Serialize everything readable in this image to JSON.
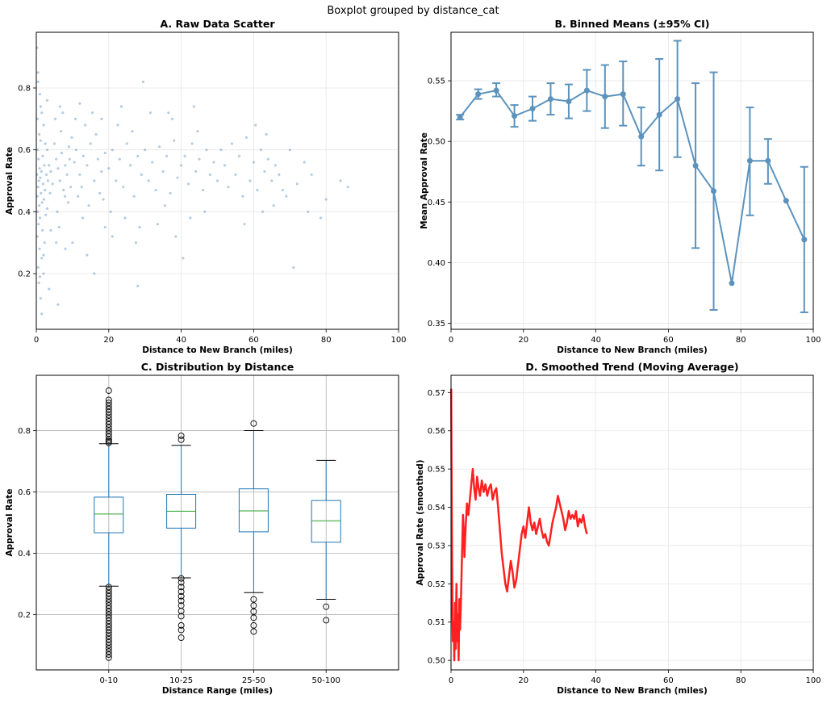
{
  "figure": {
    "suptitle": "Boxplot grouped by distance_cat"
  },
  "chart_data": [
    {
      "id": "A",
      "type": "scatter",
      "title": "A. Raw Data Scatter",
      "xlabel": "Distance to New Branch (miles)",
      "ylabel": "Approval Rate",
      "xlim": [
        0,
        100
      ],
      "ylim": [
        0.02,
        0.98
      ],
      "xticks": [
        0,
        20,
        40,
        60,
        80,
        100
      ],
      "yticks": [
        0.2,
        0.4,
        0.6,
        0.8
      ],
      "grid": true,
      "color": "#4682b4",
      "points": [
        [
          0.2,
          0.93
        ],
        [
          0.5,
          0.82
        ],
        [
          1.0,
          0.78
        ],
        [
          1.5,
          0.72
        ],
        [
          0.3,
          0.7
        ],
        [
          2.0,
          0.68
        ],
        [
          0.8,
          0.65
        ],
        [
          1.2,
          0.63
        ],
        [
          2.5,
          0.62
        ],
        [
          0.4,
          0.6
        ],
        [
          3.0,
          0.6
        ],
        [
          1.8,
          0.58
        ],
        [
          0.6,
          0.57
        ],
        [
          2.2,
          0.55
        ],
        [
          3.5,
          0.55
        ],
        [
          0.9,
          0.54
        ],
        [
          1.4,
          0.53
        ],
        [
          4.0,
          0.53
        ],
        [
          0.2,
          0.52
        ],
        [
          2.8,
          0.52
        ],
        [
          1.1,
          0.51
        ],
        [
          3.2,
          0.5
        ],
        [
          0.7,
          0.5
        ],
        [
          1.9,
          0.49
        ],
        [
          4.5,
          0.49
        ],
        [
          0.5,
          0.48
        ],
        [
          2.4,
          0.47
        ],
        [
          1.3,
          0.46
        ],
        [
          3.8,
          0.46
        ],
        [
          0.3,
          0.45
        ],
        [
          2.1,
          0.44
        ],
        [
          1.6,
          0.43
        ],
        [
          0.8,
          0.42
        ],
        [
          3.0,
          0.41
        ],
        [
          0.4,
          0.4
        ],
        [
          2.6,
          0.39
        ],
        [
          1.0,
          0.38
        ],
        [
          0.6,
          0.36
        ],
        [
          1.7,
          0.34
        ],
        [
          0.3,
          0.32
        ],
        [
          2.3,
          0.3
        ],
        [
          0.9,
          0.28
        ],
        [
          1.5,
          0.25
        ],
        [
          0.5,
          0.22
        ],
        [
          2.0,
          0.2
        ],
        [
          0.7,
          0.17
        ],
        [
          3.5,
          0.15
        ],
        [
          1.2,
          0.12
        ],
        [
          1.5,
          0.07
        ],
        [
          6.0,
          0.1
        ],
        [
          5.0,
          0.62
        ],
        [
          5.5,
          0.57
        ],
        [
          6.0,
          0.54
        ],
        [
          6.5,
          0.5
        ],
        [
          7.0,
          0.59
        ],
        [
          7.5,
          0.47
        ],
        [
          8.0,
          0.55
        ],
        [
          8.5,
          0.52
        ],
        [
          9.0,
          0.61
        ],
        [
          9.5,
          0.48
        ],
        [
          5.2,
          0.7
        ],
        [
          6.8,
          0.66
        ],
        [
          7.9,
          0.45
        ],
        [
          5.8,
          0.4
        ],
        [
          8.8,
          0.43
        ],
        [
          9.2,
          0.57
        ],
        [
          6.3,
          0.35
        ],
        [
          7.3,
          0.72
        ],
        [
          5.5,
          0.3
        ],
        [
          9.8,
          0.64
        ],
        [
          10.5,
          0.56
        ],
        [
          11.0,
          0.6
        ],
        [
          12.0,
          0.52
        ],
        [
          12.5,
          0.48
        ],
        [
          13.0,
          0.58
        ],
        [
          14.0,
          0.55
        ],
        [
          15.0,
          0.62
        ],
        [
          16.0,
          0.5
        ],
        [
          17.0,
          0.57
        ],
        [
          18.0,
          0.53
        ],
        [
          11.5,
          0.45
        ],
        [
          13.5,
          0.68
        ],
        [
          14.5,
          0.42
        ],
        [
          16.5,
          0.65
        ],
        [
          17.5,
          0.46
        ],
        [
          19.0,
          0.59
        ],
        [
          10.8,
          0.7
        ],
        [
          12.8,
          0.38
        ],
        [
          15.5,
          0.72
        ],
        [
          18.5,
          0.44
        ],
        [
          20.0,
          0.54
        ],
        [
          21.0,
          0.6
        ],
        [
          22.0,
          0.5
        ],
        [
          23.0,
          0.57
        ],
        [
          24.0,
          0.48
        ],
        [
          25.0,
          0.62
        ],
        [
          26.0,
          0.55
        ],
        [
          27.0,
          0.45
        ],
        [
          28.0,
          0.58
        ],
        [
          29.0,
          0.52
        ],
        [
          20.5,
          0.4
        ],
        [
          22.5,
          0.68
        ],
        [
          24.5,
          0.38
        ],
        [
          26.5,
          0.66
        ],
        [
          28.5,
          0.35
        ],
        [
          30.0,
          0.6
        ],
        [
          31.0,
          0.5
        ],
        [
          32.0,
          0.56
        ],
        [
          33.0,
          0.47
        ],
        [
          34.0,
          0.61
        ],
        [
          35.0,
          0.53
        ],
        [
          36.0,
          0.58
        ],
        [
          37.0,
          0.46
        ],
        [
          38.0,
          0.63
        ],
        [
          39.0,
          0.51
        ],
        [
          40.0,
          0.55
        ],
        [
          35.5,
          0.42
        ],
        [
          37.5,
          0.7
        ],
        [
          29.5,
          0.82
        ],
        [
          28.0,
          0.16
        ],
        [
          41.0,
          0.58
        ],
        [
          42.0,
          0.49
        ],
        [
          43.0,
          0.62
        ],
        [
          44.0,
          0.53
        ],
        [
          45.0,
          0.57
        ],
        [
          46.0,
          0.47
        ],
        [
          47.0,
          0.6
        ],
        [
          48.0,
          0.52
        ],
        [
          49.0,
          0.56
        ],
        [
          50.0,
          0.5
        ],
        [
          40.5,
          0.25
        ],
        [
          36.5,
          0.72
        ],
        [
          42.5,
          0.38
        ],
        [
          44.5,
          0.66
        ],
        [
          46.5,
          0.4
        ],
        [
          51.0,
          0.6
        ],
        [
          52.0,
          0.55
        ],
        [
          53.0,
          0.48
        ],
        [
          54.0,
          0.62
        ],
        [
          55.0,
          0.52
        ],
        [
          56.0,
          0.58
        ],
        [
          57.0,
          0.45
        ],
        [
          58.0,
          0.64
        ],
        [
          59.0,
          0.5
        ],
        [
          60.0,
          0.56
        ],
        [
          61.0,
          0.47
        ],
        [
          62.0,
          0.6
        ],
        [
          63.0,
          0.53
        ],
        [
          64.0,
          0.57
        ],
        [
          65.0,
          0.5
        ],
        [
          57.5,
          0.36
        ],
        [
          60.5,
          0.68
        ],
        [
          62.5,
          0.4
        ],
        [
          66.0,
          0.55
        ],
        [
          67.0,
          0.52
        ],
        [
          68.0,
          0.47
        ],
        [
          69.0,
          0.45
        ],
        [
          71.0,
          0.22
        ],
        [
          78.5,
          0.38
        ],
        [
          84.0,
          0.5
        ],
        [
          86.0,
          0.48
        ],
        [
          74.0,
          0.56
        ],
        [
          70.0,
          0.6
        ],
        [
          72.0,
          0.49
        ],
        [
          65.5,
          0.42
        ],
        [
          63.5,
          0.65
        ],
        [
          76.0,
          0.52
        ],
        [
          80.0,
          0.44
        ],
        [
          75.0,
          0.4
        ],
        [
          3.0,
          0.76
        ],
        [
          4.0,
          0.34
        ],
        [
          2.0,
          0.26
        ],
        [
          1.0,
          0.19
        ],
        [
          0.5,
          0.85
        ],
        [
          1.2,
          0.74
        ],
        [
          6.5,
          0.74
        ],
        [
          8.0,
          0.28
        ],
        [
          10.0,
          0.3
        ],
        [
          14.0,
          0.26
        ],
        [
          19.0,
          0.35
        ],
        [
          16.0,
          0.2
        ],
        [
          12.0,
          0.75
        ],
        [
          18.0,
          0.7
        ],
        [
          21.0,
          0.32
        ],
        [
          23.5,
          0.74
        ],
        [
          27.5,
          0.3
        ],
        [
          31.5,
          0.72
        ],
        [
          33.5,
          0.36
        ],
        [
          38.5,
          0.32
        ],
        [
          43.5,
          0.74
        ]
      ]
    },
    {
      "id": "B",
      "type": "line",
      "title": "B. Binned Means (±95% CI)",
      "xlabel": "Distance to New Branch (miles)",
      "ylabel": "Mean Approval Rate",
      "xlim": [
        0,
        100
      ],
      "ylim": [
        0.345,
        0.59
      ],
      "xticks": [
        0,
        20,
        40,
        60,
        80,
        100
      ],
      "yticks": [
        0.35,
        0.4,
        0.45,
        0.5,
        0.55
      ],
      "grid": true,
      "color": "#5b93bd",
      "x": [
        2.5,
        7.5,
        12.5,
        17.5,
        22.5,
        27.5,
        32.5,
        37.5,
        42.5,
        47.5,
        52.5,
        57.5,
        62.5,
        67.5,
        72.5,
        77.5,
        82.5,
        87.5,
        92.5,
        97.5
      ],
      "y": [
        0.52,
        0.539,
        0.542,
        0.521,
        0.527,
        0.535,
        0.533,
        0.542,
        0.537,
        0.539,
        0.504,
        0.522,
        0.535,
        0.48,
        0.459,
        0.383,
        0.484,
        0.484,
        0.451,
        0.419
      ],
      "ci_low": [
        0.518,
        0.535,
        0.537,
        0.512,
        0.517,
        0.522,
        0.519,
        0.525,
        0.511,
        0.513,
        0.48,
        0.476,
        0.487,
        0.412,
        0.361,
        null,
        0.439,
        0.465,
        null,
        0.359
      ],
      "ci_high": [
        0.522,
        0.543,
        0.548,
        0.53,
        0.537,
        0.548,
        0.547,
        0.559,
        0.563,
        0.566,
        0.528,
        0.568,
        0.583,
        0.548,
        0.557,
        null,
        0.528,
        0.502,
        null,
        0.479
      ]
    },
    {
      "id": "C",
      "type": "box",
      "title": "C. Distribution by Distance",
      "xlabel": "Distance Range (miles)",
      "ylabel": "Approval Rate",
      "ylim": [
        0.02,
        0.98
      ],
      "yticks": [
        0.2,
        0.4,
        0.6,
        0.8
      ],
      "grid": true,
      "categories": [
        "0-10",
        "10-25",
        "25-50",
        "50-100"
      ],
      "box_color": "#1f77b4",
      "median_color": "#2ca02c",
      "boxes": [
        {
          "whislo": 0.293,
          "q1": 0.467,
          "med": 0.528,
          "q3": 0.583,
          "whishi": 0.757,
          "fliers": [
            0.93,
            0.9,
            0.89,
            0.88,
            0.87,
            0.86,
            0.85,
            0.84,
            0.83,
            0.82,
            0.81,
            0.8,
            0.79,
            0.78,
            0.77,
            0.765,
            0.76,
            0.29,
            0.28,
            0.27,
            0.26,
            0.25,
            0.24,
            0.23,
            0.22,
            0.21,
            0.2,
            0.19,
            0.18,
            0.17,
            0.16,
            0.15,
            0.14,
            0.13,
            0.12,
            0.11,
            0.1,
            0.09,
            0.08,
            0.07,
            0.06
          ]
        },
        {
          "whislo": 0.32,
          "q1": 0.482,
          "med": 0.537,
          "q3": 0.592,
          "whishi": 0.752,
          "fliers": [
            0.783,
            0.77,
            0.318,
            0.305,
            0.29,
            0.275,
            0.26,
            0.245,
            0.23,
            0.212,
            0.195,
            0.165,
            0.15,
            0.125
          ]
        },
        {
          "whislo": 0.272,
          "q1": 0.47,
          "med": 0.538,
          "q3": 0.61,
          "whishi": 0.8,
          "fliers": [
            0.823,
            0.25,
            0.23,
            0.21,
            0.19,
            0.165,
            0.145
          ]
        },
        {
          "whislo": 0.25,
          "q1": 0.436,
          "med": 0.506,
          "q3": 0.572,
          "whishi": 0.703,
          "fliers": [
            0.226,
            0.182
          ]
        }
      ]
    },
    {
      "id": "D",
      "type": "line",
      "title": "D. Smoothed Trend (Moving Average)",
      "xlabel": "Distance to New Branch (miles)",
      "ylabel": "Approval Rate (smoothed)",
      "xlim": [
        0,
        100
      ],
      "ylim": [
        0.4975,
        0.5745
      ],
      "xticks": [
        0,
        20,
        40,
        60,
        80,
        100
      ],
      "yticks": [
        0.5,
        0.51,
        0.52,
        0.53,
        0.54,
        0.55,
        0.56,
        0.57
      ],
      "grid": true,
      "color": "#ff2020",
      "x": [
        0.05,
        0.1,
        0.2,
        0.3,
        0.4,
        0.5,
        0.7,
        0.9,
        1.1,
        1.3,
        1.5,
        1.7,
        1.9,
        2.1,
        2.3,
        2.5,
        2.7,
        2.9,
        3.1,
        3.3,
        3.5,
        3.7,
        3.9,
        4.1,
        4.4,
        4.8,
        5.2,
        5.6,
        6.0,
        6.4,
        6.8,
        7.2,
        7.6,
        8.0,
        8.5,
        9.0,
        9.5,
        10.0,
        10.5,
        11.0,
        11.5,
        12.0,
        12.5,
        13.0,
        13.5,
        14.0,
        14.5,
        15.0,
        15.5,
        16.0,
        16.5,
        17.0,
        17.5,
        18.0,
        18.5,
        19.0,
        19.5,
        20.0,
        20.5,
        21.0,
        21.5,
        22.0,
        22.5,
        23.0,
        23.5,
        24.0,
        24.5,
        25.0,
        25.5,
        26.0,
        26.5,
        27.0,
        27.5,
        28.0,
        28.5,
        29.0,
        29.5,
        30.0,
        30.5,
        31.0,
        31.5,
        32.0,
        32.5,
        33.0,
        33.5,
        34.0,
        34.5,
        35.0,
        35.5,
        36.0,
        36.5,
        37.0,
        37.5
      ],
      "y": [
        0.571,
        0.56,
        0.54,
        0.525,
        0.512,
        0.505,
        0.51,
        0.5,
        0.515,
        0.503,
        0.52,
        0.505,
        0.512,
        0.5,
        0.516,
        0.508,
        0.514,
        0.522,
        0.53,
        0.538,
        0.534,
        0.527,
        0.532,
        0.536,
        0.541,
        0.538,
        0.542,
        0.546,
        0.55,
        0.545,
        0.542,
        0.548,
        0.545,
        0.543,
        0.547,
        0.544,
        0.546,
        0.543,
        0.545,
        0.546,
        0.542,
        0.544,
        0.545,
        0.54,
        0.534,
        0.528,
        0.524,
        0.52,
        0.518,
        0.522,
        0.526,
        0.523,
        0.519,
        0.521,
        0.525,
        0.529,
        0.533,
        0.535,
        0.532,
        0.536,
        0.54,
        0.536,
        0.534,
        0.536,
        0.533,
        0.535,
        0.537,
        0.534,
        0.532,
        0.533,
        0.531,
        0.53,
        0.533,
        0.536,
        0.538,
        0.54,
        0.543,
        0.541,
        0.539,
        0.537,
        0.534,
        0.536,
        0.539,
        0.537,
        0.538,
        0.537,
        0.539,
        0.535,
        0.537,
        0.536,
        0.538,
        0.535,
        0.533
      ]
    }
  ]
}
